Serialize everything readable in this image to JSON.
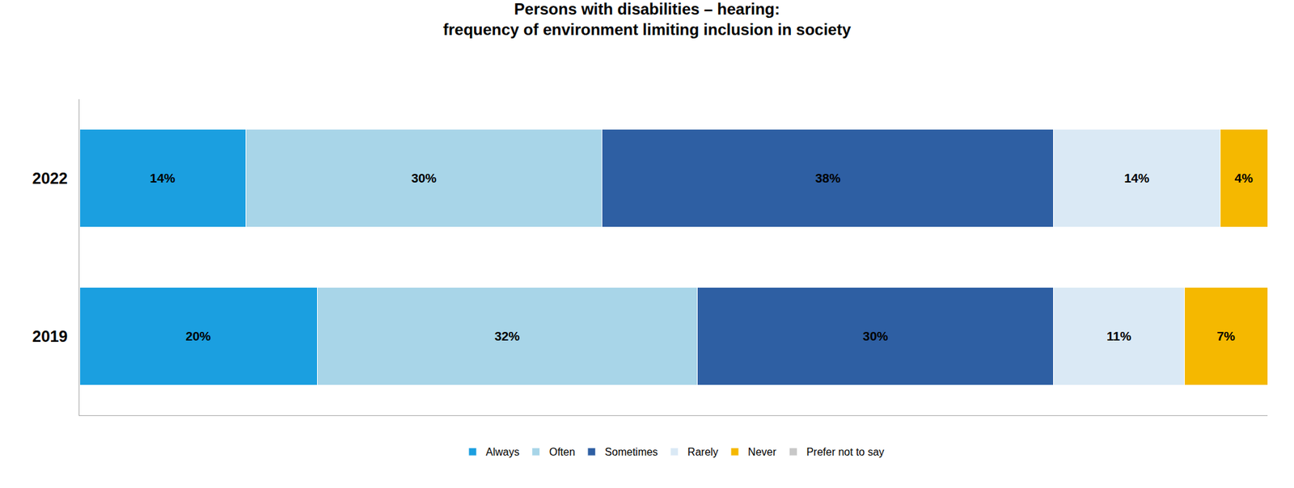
{
  "chart_data": {
    "type": "bar",
    "orientation": "horizontal",
    "stacked": true,
    "title": "Persons with disabilities – hearing:\nfrequency of environment limiting inclusion in society",
    "categories": [
      "2022",
      "2019"
    ],
    "series": [
      {
        "name": "Always",
        "color": "#1B9FE0",
        "values": [
          14,
          20
        ],
        "value_labels": [
          "14%",
          "20%"
        ]
      },
      {
        "name": "Often",
        "color": "#A8D5E8",
        "values": [
          30,
          32
        ],
        "value_labels": [
          "30%",
          "32%"
        ]
      },
      {
        "name": "Sometimes",
        "color": "#2E5FA3",
        "values": [
          38,
          30
        ],
        "value_labels": [
          "38%",
          "30%"
        ]
      },
      {
        "name": "Rarely",
        "color": "#DAE9F5",
        "values": [
          14,
          11
        ],
        "value_labels": [
          "14%",
          "11%"
        ]
      },
      {
        "name": "Never",
        "color": "#F5B800",
        "values": [
          4,
          7
        ],
        "value_labels": [
          "4%",
          "7%"
        ]
      },
      {
        "name": "Prefer not to say",
        "color": "#C8C8C8",
        "values": [
          0,
          0
        ],
        "value_labels": [
          null,
          null
        ]
      }
    ],
    "xlim": [
      0,
      100
    ],
    "data_labels": true,
    "tick_labels": "y",
    "grid": false,
    "legend": "bottom"
  }
}
